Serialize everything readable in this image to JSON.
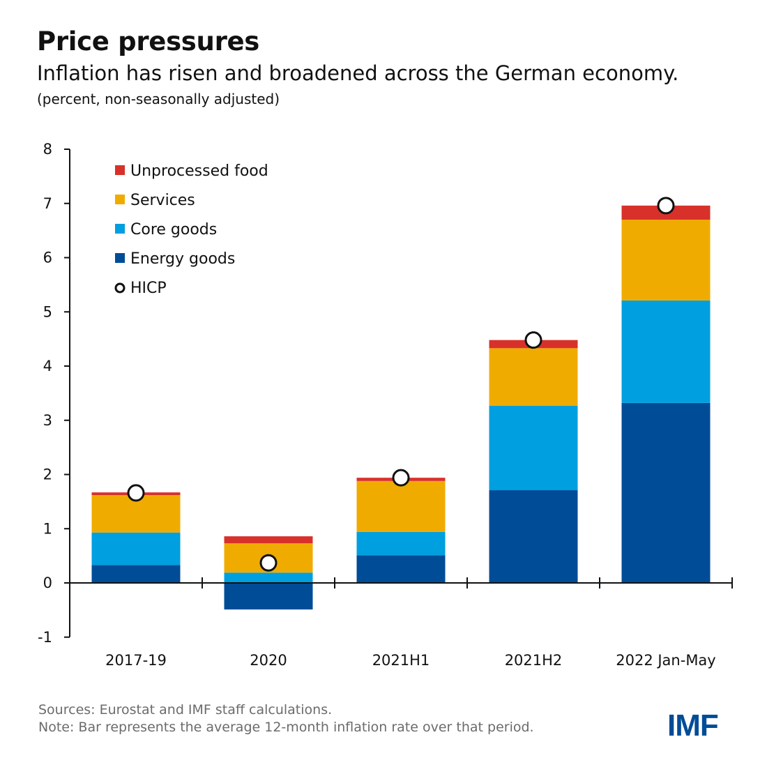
{
  "title": "Price pressures",
  "subtitle": "Inflation has risen and broadened across the German economy.",
  "units": "(percent, non-seasonally adjusted)",
  "sources": "Sources: Eurostat and IMF staff calculations.",
  "note": "Note: Bar represents the average 12-month inflation rate over that period.",
  "logo": "IMF",
  "chart_data": {
    "type": "bar",
    "stacked": true,
    "categories": [
      "2017-19",
      "2020",
      "2021H1",
      "2021H2",
      "2022 Jan-May"
    ],
    "ylim": [
      -1,
      8
    ],
    "yticks": [
      -1,
      0,
      1,
      2,
      3,
      4,
      5,
      6,
      7,
      8
    ],
    "legend_placement": "top-left",
    "series": [
      {
        "name": "Energy goods",
        "color": "#004c97",
        "values": [
          0.33,
          -0.49,
          0.51,
          1.71,
          3.32
        ]
      },
      {
        "name": "Core goods",
        "color": "#009fdf",
        "values": [
          0.6,
          0.19,
          0.43,
          1.56,
          1.89
        ]
      },
      {
        "name": "Services",
        "color": "#f0ab00",
        "values": [
          0.69,
          0.54,
          0.94,
          1.06,
          1.49
        ]
      },
      {
        "name": "Unprocessed food",
        "color": "#d7312a",
        "values": [
          0.05,
          0.13,
          0.06,
          0.15,
          0.26
        ]
      }
    ],
    "markers": {
      "name": "HICP",
      "type": "circle",
      "values": [
        1.66,
        0.37,
        1.94,
        4.48,
        6.96
      ]
    },
    "legend_order": [
      "Unprocessed food",
      "Services",
      "Core goods",
      "Energy goods",
      "HICP"
    ]
  }
}
